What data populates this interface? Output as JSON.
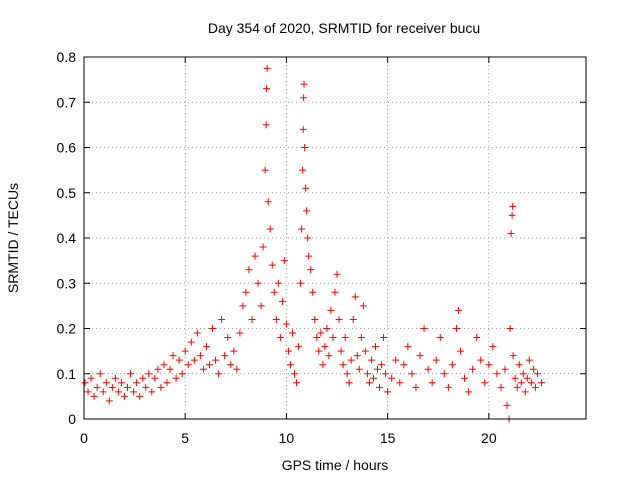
{
  "chart_data": {
    "type": "scatter",
    "title": "Day 354 of 2020, SRMTID for receiver bucu",
    "xlabel": "GPS time / hours",
    "ylabel": "SRMTID / TECUs",
    "xlim": [
      0,
      24.8
    ],
    "ylim": [
      0,
      0.8
    ],
    "xticks": [
      0,
      5,
      10,
      15,
      20
    ],
    "xtick_labels": [
      "0",
      "5",
      "10",
      "15",
      "20"
    ],
    "yticks": [
      0,
      0.1,
      0.2,
      0.3,
      0.4,
      0.5,
      0.6,
      0.7,
      0.8
    ],
    "ytick_labels": [
      "0",
      "0.1",
      "0.2",
      "0.3",
      "0.4",
      "0.5",
      "0.6",
      "0.7",
      "0.8"
    ],
    "grid": true,
    "marker": "+",
    "color": "#ff0000",
    "series": [
      {
        "name": "SRMTID",
        "points": [
          [
            0.05,
            0.08
          ],
          [
            0.2,
            0.06
          ],
          [
            0.35,
            0.09
          ],
          [
            0.5,
            0.05
          ],
          [
            0.65,
            0.07
          ],
          [
            0.8,
            0.1
          ],
          [
            0.95,
            0.06
          ],
          [
            1.1,
            0.08
          ],
          [
            1.25,
            0.04
          ],
          [
            1.4,
            0.07
          ],
          [
            1.55,
            0.09
          ],
          [
            1.7,
            0.06
          ],
          [
            1.85,
            0.08
          ],
          [
            2.0,
            0.05
          ],
          [
            2.15,
            0.07
          ],
          [
            2.3,
            0.1
          ],
          [
            2.45,
            0.06
          ],
          [
            2.6,
            0.08
          ],
          [
            2.75,
            0.05
          ],
          [
            2.9,
            0.09
          ],
          [
            3.05,
            0.07
          ],
          [
            3.2,
            0.1
          ],
          [
            3.35,
            0.06
          ],
          [
            3.5,
            0.09
          ],
          [
            3.65,
            0.11
          ],
          [
            3.8,
            0.07
          ],
          [
            3.95,
            0.12
          ],
          [
            4.1,
            0.08
          ],
          [
            4.25,
            0.11
          ],
          [
            4.4,
            0.14
          ],
          [
            4.55,
            0.09
          ],
          [
            4.7,
            0.13
          ],
          [
            4.85,
            0.1
          ],
          [
            5.0,
            0.15
          ],
          [
            5.15,
            0.12
          ],
          [
            5.3,
            0.17
          ],
          [
            5.45,
            0.13
          ],
          [
            5.6,
            0.19
          ],
          [
            5.75,
            0.14
          ],
          [
            5.9,
            0.11
          ],
          [
            6.05,
            0.16
          ],
          [
            6.2,
            0.12
          ],
          [
            6.35,
            0.2
          ],
          [
            6.5,
            0.13
          ],
          [
            6.65,
            0.1
          ],
          [
            6.8,
            0.22
          ],
          [
            6.95,
            0.14
          ],
          [
            7.1,
            0.18
          ],
          [
            7.25,
            0.12
          ],
          [
            7.4,
            0.15
          ],
          [
            7.55,
            0.11
          ],
          [
            7.7,
            0.19
          ],
          [
            7.85,
            0.25
          ],
          [
            8.0,
            0.28
          ],
          [
            8.15,
            0.33
          ],
          [
            8.3,
            0.22
          ],
          [
            8.45,
            0.36
          ],
          [
            8.6,
            0.3
          ],
          [
            8.75,
            0.25
          ],
          [
            8.85,
            0.38
          ],
          [
            8.95,
            0.55
          ],
          [
            9.0,
            0.65
          ],
          [
            9.02,
            0.73
          ],
          [
            9.05,
            0.775
          ],
          [
            9.1,
            0.48
          ],
          [
            9.2,
            0.42
          ],
          [
            9.3,
            0.34
          ],
          [
            9.4,
            0.28
          ],
          [
            9.5,
            0.22
          ],
          [
            9.6,
            0.3
          ],
          [
            9.7,
            0.18
          ],
          [
            9.8,
            0.26
          ],
          [
            9.9,
            0.35
          ],
          [
            10.0,
            0.21
          ],
          [
            10.1,
            0.15
          ],
          [
            10.2,
            0.12
          ],
          [
            10.3,
            0.19
          ],
          [
            10.4,
            0.1
          ],
          [
            10.5,
            0.08
          ],
          [
            10.6,
            0.16
          ],
          [
            10.7,
            0.3
          ],
          [
            10.75,
            0.42
          ],
          [
            10.8,
            0.55
          ],
          [
            10.83,
            0.64
          ],
          [
            10.85,
            0.71
          ],
          [
            10.87,
            0.74
          ],
          [
            10.9,
            0.6
          ],
          [
            10.95,
            0.51
          ],
          [
            11.0,
            0.46
          ],
          [
            11.05,
            0.4
          ],
          [
            11.1,
            0.36
          ],
          [
            11.2,
            0.33
          ],
          [
            11.3,
            0.28
          ],
          [
            11.4,
            0.22
          ],
          [
            11.5,
            0.18
          ],
          [
            11.6,
            0.15
          ],
          [
            11.7,
            0.19
          ],
          [
            11.8,
            0.12
          ],
          [
            11.9,
            0.16
          ],
          [
            12.0,
            0.2
          ],
          [
            12.1,
            0.14
          ],
          [
            12.2,
            0.24
          ],
          [
            12.3,
            0.18
          ],
          [
            12.4,
            0.28
          ],
          [
            12.5,
            0.32
          ],
          [
            12.6,
            0.22
          ],
          [
            12.7,
            0.15
          ],
          [
            12.8,
            0.12
          ],
          [
            12.9,
            0.18
          ],
          [
            13.0,
            0.1
          ],
          [
            13.1,
            0.08
          ],
          [
            13.2,
            0.13
          ],
          [
            13.3,
            0.22
          ],
          [
            13.4,
            0.27
          ],
          [
            13.5,
            0.14
          ],
          [
            13.6,
            0.11
          ],
          [
            13.7,
            0.18
          ],
          [
            13.8,
            0.25
          ],
          [
            13.9,
            0.15
          ],
          [
            14.0,
            0.1
          ],
          [
            14.1,
            0.08
          ],
          [
            14.2,
            0.13
          ],
          [
            14.3,
            0.09
          ],
          [
            14.4,
            0.16
          ],
          [
            14.5,
            0.11
          ],
          [
            14.6,
            0.07
          ],
          [
            14.7,
            0.12
          ],
          [
            14.8,
            0.18
          ],
          [
            14.9,
            0.1
          ],
          [
            15.0,
            0.06
          ],
          [
            15.2,
            0.09
          ],
          [
            15.4,
            0.13
          ],
          [
            15.6,
            0.08
          ],
          [
            15.8,
            0.12
          ],
          [
            16.0,
            0.16
          ],
          [
            16.2,
            0.1
          ],
          [
            16.4,
            0.07
          ],
          [
            16.6,
            0.14
          ],
          [
            16.8,
            0.2
          ],
          [
            17.0,
            0.11
          ],
          [
            17.2,
            0.08
          ],
          [
            17.4,
            0.13
          ],
          [
            17.6,
            0.18
          ],
          [
            17.8,
            0.1
          ],
          [
            18.0,
            0.07
          ],
          [
            18.2,
            0.12
          ],
          [
            18.4,
            0.2
          ],
          [
            18.5,
            0.24
          ],
          [
            18.6,
            0.15
          ],
          [
            18.8,
            0.09
          ],
          [
            19.0,
            0.06
          ],
          [
            19.2,
            0.11
          ],
          [
            19.4,
            0.18
          ],
          [
            19.6,
            0.13
          ],
          [
            19.8,
            0.08
          ],
          [
            20.0,
            0.12
          ],
          [
            20.2,
            0.16
          ],
          [
            20.4,
            0.1
          ],
          [
            20.6,
            0.07
          ],
          [
            20.8,
            0.11
          ],
          [
            20.9,
            0.03
          ],
          [
            21.0,
            0.0
          ],
          [
            21.05,
            0.2
          ],
          [
            21.1,
            0.41
          ],
          [
            21.15,
            0.45
          ],
          [
            21.18,
            0.47
          ],
          [
            21.2,
            0.14
          ],
          [
            21.3,
            0.09
          ],
          [
            21.4,
            0.07
          ],
          [
            21.5,
            0.12
          ],
          [
            21.6,
            0.08
          ],
          [
            21.7,
            0.1
          ],
          [
            21.8,
            0.06
          ],
          [
            21.9,
            0.09
          ],
          [
            22.0,
            0.13
          ],
          [
            22.1,
            0.08
          ],
          [
            22.2,
            0.11
          ],
          [
            22.3,
            0.07
          ],
          [
            22.4,
            0.1
          ],
          [
            22.6,
            0.08
          ]
        ]
      }
    ]
  }
}
